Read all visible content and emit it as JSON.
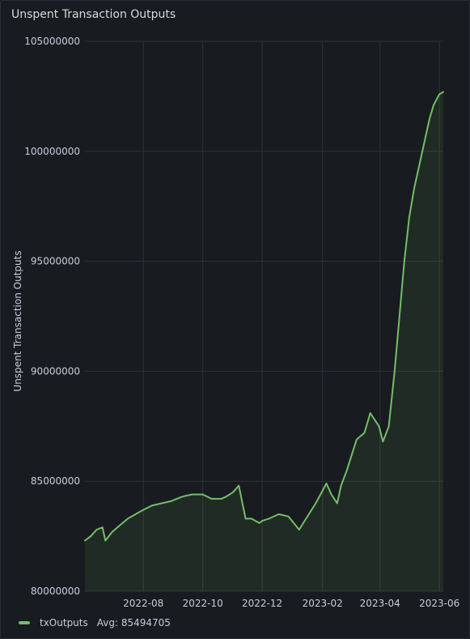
{
  "panel": {
    "title": "Unspent Transaction Outputs"
  },
  "legend": {
    "series_name": "txOutputs",
    "avg_label": "Avg: 85494705"
  },
  "colors": {
    "series": "#73bf69",
    "grid": "#2f3238",
    "text": "#ccccdc"
  },
  "chart_data": {
    "type": "area",
    "title": "Unspent Transaction Outputs",
    "ylabel": "Unspent Transaction Outputs",
    "xlabel": "",
    "ylim": [
      80000000,
      105000000
    ],
    "xlim": [
      "2022-06-02",
      "2023-06-05"
    ],
    "y_ticks": [
      "80000000",
      "85000000",
      "90000000",
      "95000000",
      "100000000",
      "105000000"
    ],
    "y_tick_values": [
      80000000,
      85000000,
      90000000,
      95000000,
      100000000,
      105000000
    ],
    "x_ticks": [
      "2022-08",
      "2022-10",
      "2022-12",
      "2023-02",
      "2023-04",
      "2023-06"
    ],
    "x_tick_dates": [
      "2022-08-01",
      "2022-10-01",
      "2022-12-01",
      "2023-02-01",
      "2023-04-01",
      "2023-06-01"
    ],
    "grid": true,
    "legend_position": "bottom-left",
    "series": [
      {
        "name": "txOutputs",
        "x": [
          "2022-06-02",
          "2022-06-08",
          "2022-06-14",
          "2022-06-20",
          "2022-06-23",
          "2022-06-30",
          "2022-07-08",
          "2022-07-16",
          "2022-07-24",
          "2022-08-01",
          "2022-08-10",
          "2022-08-20",
          "2022-08-30",
          "2022-09-10",
          "2022-09-20",
          "2022-10-01",
          "2022-10-10",
          "2022-10-20",
          "2022-10-25",
          "2022-11-01",
          "2022-11-07",
          "2022-11-14",
          "2022-11-20",
          "2022-11-28",
          "2022-12-01",
          "2022-12-08",
          "2022-12-18",
          "2022-12-28",
          "2023-01-08",
          "2023-01-15",
          "2023-01-25",
          "2023-02-05",
          "2023-02-10",
          "2023-02-16",
          "2023-02-20",
          "2023-02-26",
          "2023-03-03",
          "2023-03-08",
          "2023-03-16",
          "2023-03-22",
          "2023-03-31",
          "2023-04-04",
          "2023-04-10",
          "2023-04-16",
          "2023-04-22",
          "2023-04-26",
          "2023-05-01",
          "2023-05-06",
          "2023-05-12",
          "2023-05-17",
          "2023-05-22",
          "2023-05-26",
          "2023-06-01",
          "2023-06-05"
        ],
        "values": [
          82300000,
          82500000,
          82800000,
          82900000,
          82300000,
          82700000,
          83000000,
          83300000,
          83500000,
          83700000,
          83900000,
          84000000,
          84100000,
          84300000,
          84400000,
          84400000,
          84200000,
          84200000,
          84300000,
          84500000,
          84800000,
          83300000,
          83300000,
          83100000,
          83200000,
          83300000,
          83500000,
          83400000,
          82800000,
          83300000,
          84000000,
          84900000,
          84400000,
          84000000,
          84800000,
          85500000,
          86200000,
          86900000,
          87200000,
          88100000,
          87500000,
          86800000,
          87500000,
          90000000,
          93000000,
          95000000,
          97000000,
          98300000,
          99500000,
          100500000,
          101500000,
          102100000,
          102600000,
          102700000
        ]
      }
    ]
  }
}
